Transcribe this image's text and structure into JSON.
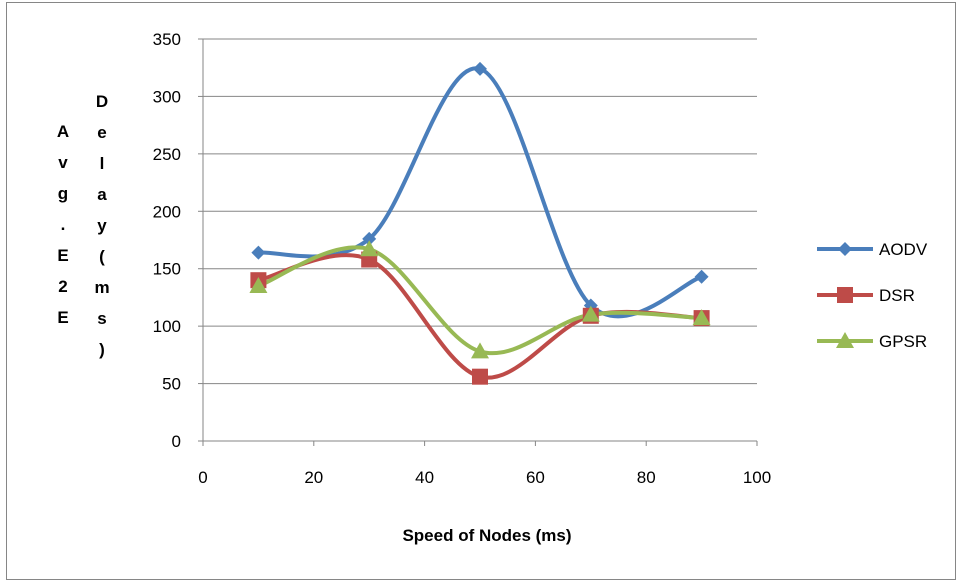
{
  "chart_data": {
    "type": "line",
    "title": "",
    "xlabel": "Speed of Nodes (ms)",
    "ylabel_left": [
      "A",
      "v",
      "g",
      ".",
      "E",
      "2",
      "E"
    ],
    "ylabel_right": [
      "D",
      "e",
      "l",
      "a",
      "y",
      "(",
      "m",
      "s",
      ")"
    ],
    "xlim": [
      0,
      100
    ],
    "ylim": [
      0,
      350
    ],
    "x_ticks": [
      0,
      20,
      40,
      60,
      80,
      100
    ],
    "y_ticks": [
      0,
      50,
      100,
      150,
      200,
      250,
      300,
      350
    ],
    "grid": "horizontal",
    "smoothed": true,
    "legend_position": "right",
    "series": [
      {
        "name": "AODV",
        "color": "#4a7ebb",
        "marker": "diamond",
        "x": [
          10,
          30,
          50,
          70,
          90
        ],
        "y": [
          164,
          176,
          324,
          118,
          143
        ]
      },
      {
        "name": "DSR",
        "color": "#be4b48",
        "marker": "square",
        "x": [
          10,
          30,
          50,
          70,
          90
        ],
        "y": [
          140,
          158,
          56,
          109,
          107
        ]
      },
      {
        "name": "GPSR",
        "color": "#98b954",
        "marker": "triangle",
        "x": [
          10,
          30,
          50,
          70,
          90
        ],
        "y": [
          135,
          167,
          78,
          110,
          107
        ]
      }
    ]
  }
}
